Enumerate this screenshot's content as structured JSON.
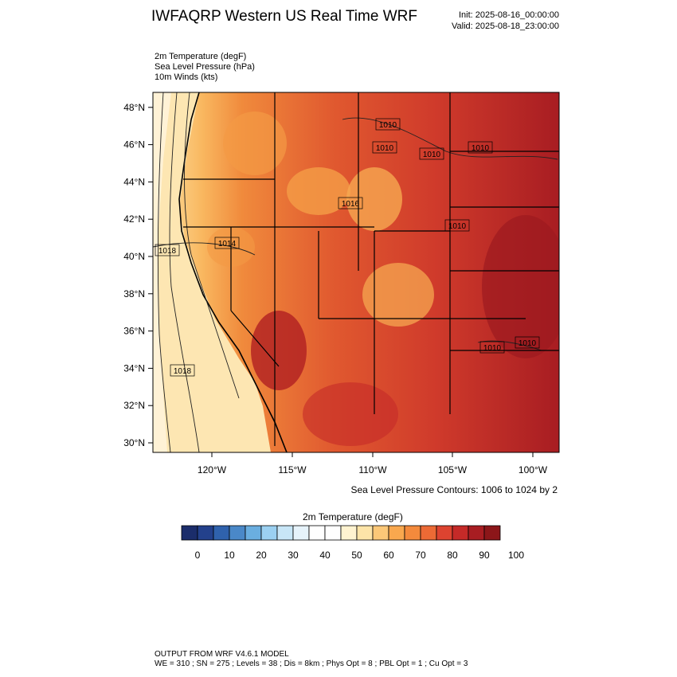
{
  "header": {
    "title": "IWFAQRP Western US Real Time WRF",
    "init": "Init: 2025-08-16_00:00:00",
    "valid": "Valid: 2025-08-18_23:00:00"
  },
  "fields": [
    "2m Temperature   (degF)",
    "Sea Level Pressure   (hPa)",
    "10m Winds   (kts)"
  ],
  "map": {
    "lat_labels": [
      "30°N",
      "32°N",
      "34°N",
      "36°N",
      "38°N",
      "40°N",
      "42°N",
      "44°N",
      "46°N",
      "48°N"
    ],
    "lon_labels": [
      "120°W",
      "115°W",
      "110°W",
      "105°W",
      "100°W"
    ],
    "isobar_labels": [
      "1010",
      "1010",
      "1010",
      "1010",
      "1018",
      "1018",
      "1014",
      "1016",
      "1010",
      "1010",
      "1010"
    ],
    "contour_note": "Sea Level Pressure Contours: 1006 to 1024 by 2"
  },
  "colorbar": {
    "title": "2m Temperature  (degF)",
    "colors": [
      "#1b2d6b",
      "#23418c",
      "#2f62ad",
      "#4a88c8",
      "#6aaee0",
      "#9bd0f1",
      "#c8e6f7",
      "#e6f3fb",
      "#ffffff",
      "#ffffff",
      "#fff3d0",
      "#fde4a8",
      "#fcc878",
      "#f9a84e",
      "#f48a3c",
      "#ec6a35",
      "#dd4330",
      "#c52a28",
      "#a81d22",
      "#8c1619"
    ],
    "tick_labels": [
      "0",
      "10",
      "20",
      "30",
      "40",
      "50",
      "60",
      "70",
      "80",
      "90",
      "100"
    ]
  },
  "footer": {
    "model": "OUTPUT FROM WRF V4.6.1 MODEL",
    "params": "WE = 310 ; SN = 275 ; Levels = 38 ; Dis = 8km ; Phys Opt = 8 ; PBL Opt = 1 ; Cu Opt = 3"
  }
}
